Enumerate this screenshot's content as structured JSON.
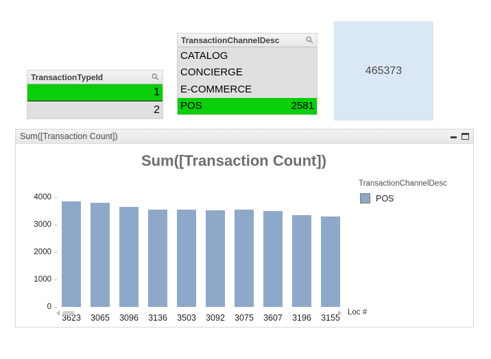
{
  "colors": {
    "selected_green": "#0ACE0A",
    "excluded_gray": "#e0e0e0",
    "bar_blue": "#8DA8C8",
    "kpi_bg": "#DAE7F4"
  },
  "icons": {
    "header_search": "magnifier",
    "caption_minimize": "dash",
    "caption_maximize": "square-outline",
    "scroll_left": "triangle-left",
    "scroll_right": "triangle-right"
  },
  "listboxes": {
    "transaction_type": {
      "title": "TransactionTypeId",
      "rows": [
        {
          "text": "",
          "value": "1",
          "state": "selected"
        },
        {
          "text": "",
          "value": "2",
          "state": "excluded"
        }
      ]
    },
    "transaction_channel": {
      "title": "TransactionChannelDesc",
      "rows": [
        {
          "text": "CATALOG",
          "value": "",
          "state": "excluded"
        },
        {
          "text": "CONCIERGE",
          "value": "",
          "state": "excluded"
        },
        {
          "text": "E-COMMERCE",
          "value": "",
          "state": "excluded"
        },
        {
          "text": "POS",
          "value": "2581",
          "state": "selected"
        }
      ]
    }
  },
  "kpi": {
    "value": "465373"
  },
  "chart_window": {
    "caption": "Sum([Transaction Count])"
  },
  "chart_data": {
    "type": "bar",
    "title": "Sum([Transaction Count])",
    "categories": [
      "3623",
      "3065",
      "3096",
      "3136",
      "3503",
      "3092",
      "3075",
      "3607",
      "3196",
      "3155"
    ],
    "series": [
      {
        "name": "POS",
        "values": [
          3840,
          3800,
          3650,
          3540,
          3540,
          3530,
          3540,
          3490,
          3340,
          3300
        ]
      }
    ],
    "xlabel": "Loc #",
    "ylabel": "",
    "ylim": [
      0,
      4000
    ],
    "yticks": [
      0,
      1000,
      2000,
      3000,
      4000
    ],
    "legend_title": "TransactionChannelDesc",
    "legend_position": "right",
    "grid": false
  }
}
